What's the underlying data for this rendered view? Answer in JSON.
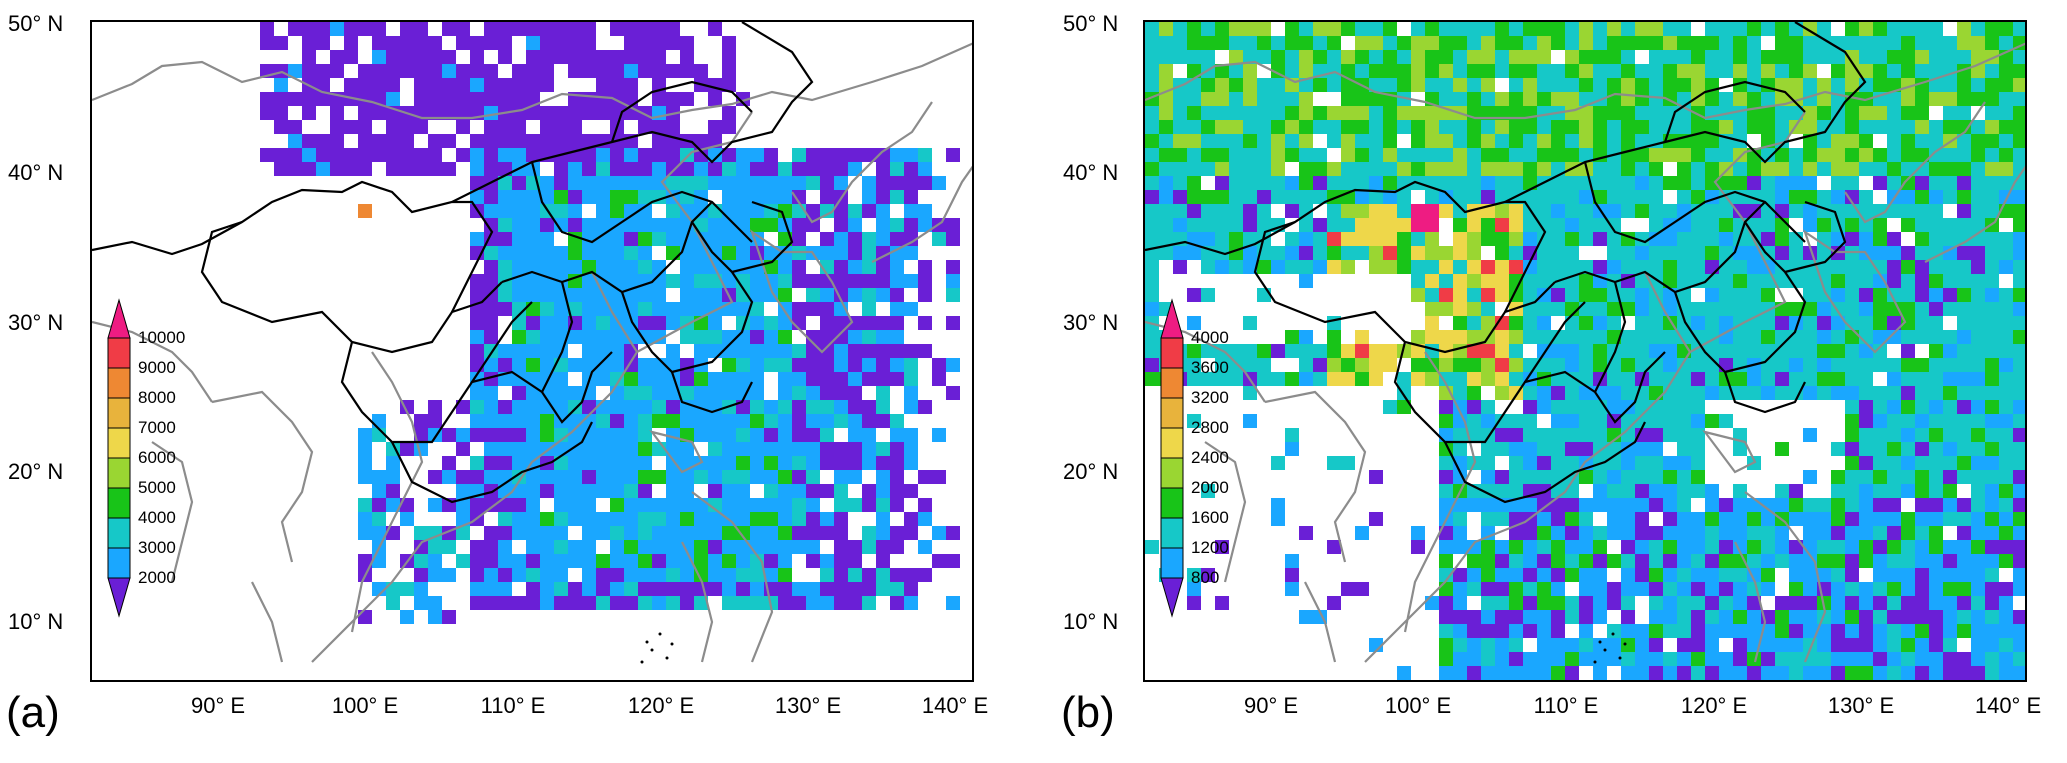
{
  "palette": {
    "purple": "#6a1fd6",
    "blue": "#1aa7ff",
    "cyan": "#16c8c8",
    "green": "#18c418",
    "lightgreen": "#9ad632",
    "yellow": "#eed74a",
    "gold": "#e8b33c",
    "orange": "#ee8833",
    "red": "#f03c46",
    "magenta": "#ee1c82",
    "boundary": "#000000",
    "coast": "#8c8c8c"
  },
  "panels": [
    {
      "id": "a",
      "letter": "(a)",
      "y_axis_labels": [
        "50° N",
        "40° N",
        "30° N",
        "20° N",
        "10° N"
      ],
      "x_axis_labels": [
        "90° E",
        "100° E",
        "110° E",
        "120° E",
        "130° E",
        "140° E"
      ],
      "colorbar": {
        "labels": [
          "10000",
          "9000",
          "8000",
          "7000",
          "6000",
          "5000",
          "4000",
          "3000",
          "2000"
        ],
        "colors": [
          "magenta",
          "red",
          "orange",
          "gold",
          "yellow",
          "lightgreen",
          "green",
          "cyan",
          "blue",
          "purple"
        ]
      }
    },
    {
      "id": "b",
      "letter": "(b)",
      "y_axis_labels": [
        "50° N",
        "40° N",
        "30° N",
        "20° N",
        "10° N"
      ],
      "x_axis_labels": [
        "90° E",
        "100° E",
        "110° E",
        "120° E",
        "130° E",
        "140° E"
      ],
      "colorbar": {
        "labels": [
          "4000",
          "3600",
          "3200",
          "2800",
          "2400",
          "2000",
          "1600",
          "1200",
          "800"
        ],
        "colors": [
          "magenta",
          "red",
          "orange",
          "gold",
          "yellow",
          "lightgreen",
          "green",
          "cyan",
          "blue",
          "purple"
        ]
      }
    }
  ]
}
